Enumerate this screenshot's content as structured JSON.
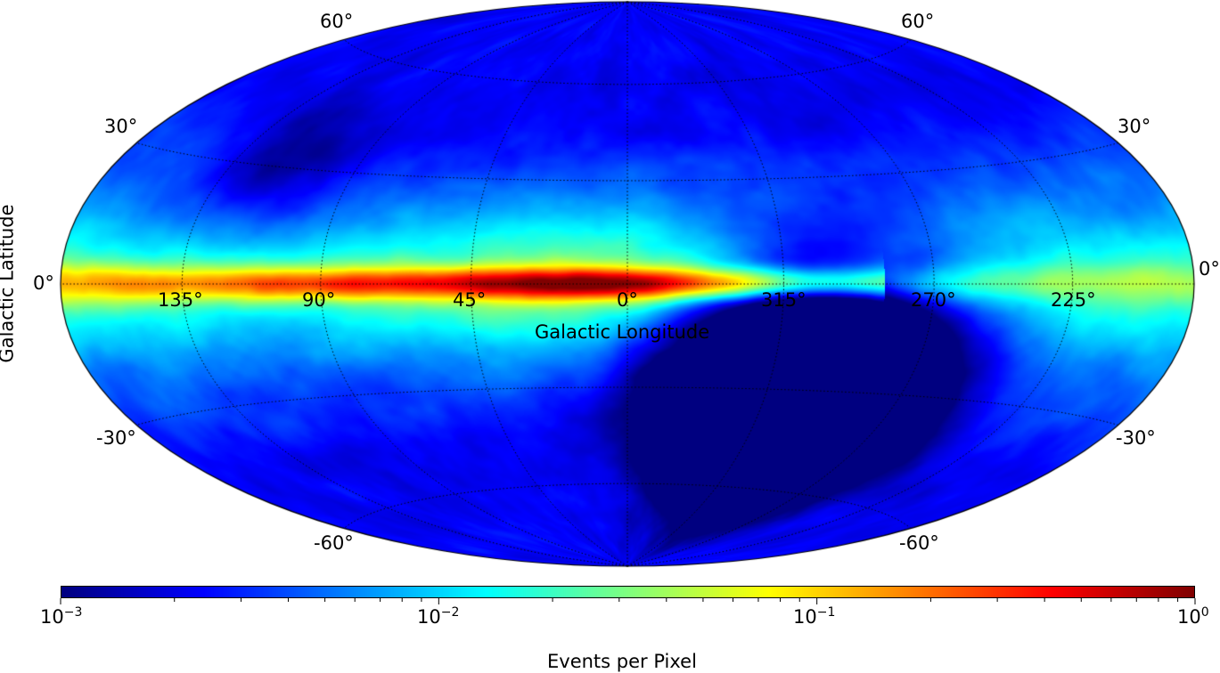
{
  "chart_data": {
    "type": "heatmap",
    "projection": "aitoff-hammer (all-sky)",
    "colormap": "jet",
    "scale": "log",
    "grid": true,
    "xlabel": "Galactic Longitude",
    "ylabel": "Galactic Latitude",
    "colorbar_label": "Events per Pixel",
    "colorbar_range": [
      0.001,
      1
    ],
    "colorbar_tick_labels": [
      {
        "base": "10",
        "exp": "−3",
        "value": 0.001
      },
      {
        "base": "10",
        "exp": "−2",
        "value": 0.01
      },
      {
        "base": "10",
        "exp": "−1",
        "value": 0.1
      },
      {
        "base": "10",
        "exp": "0",
        "value": 1
      }
    ],
    "longitude_ticks": [
      "135°",
      "90°",
      "45°",
      "0°",
      "315°",
      "270°",
      "225°"
    ],
    "longitude_tick_values": [
      135,
      90,
      45,
      0,
      315,
      270,
      225
    ],
    "latitude_tick_values": [
      60,
      30,
      0,
      -30,
      -60
    ],
    "latitude_ticks_left": [
      "60°",
      "30°",
      "0°",
      "-30°",
      "-60°"
    ],
    "latitude_ticks_right": [
      "60°",
      "30°",
      "0°",
      "-30°",
      "-60°"
    ],
    "features": [
      {
        "name": "galactic plane band",
        "approx_value": 0.5
      },
      {
        "name": "southern low-exposure region",
        "approx_value": 0.001
      }
    ]
  }
}
